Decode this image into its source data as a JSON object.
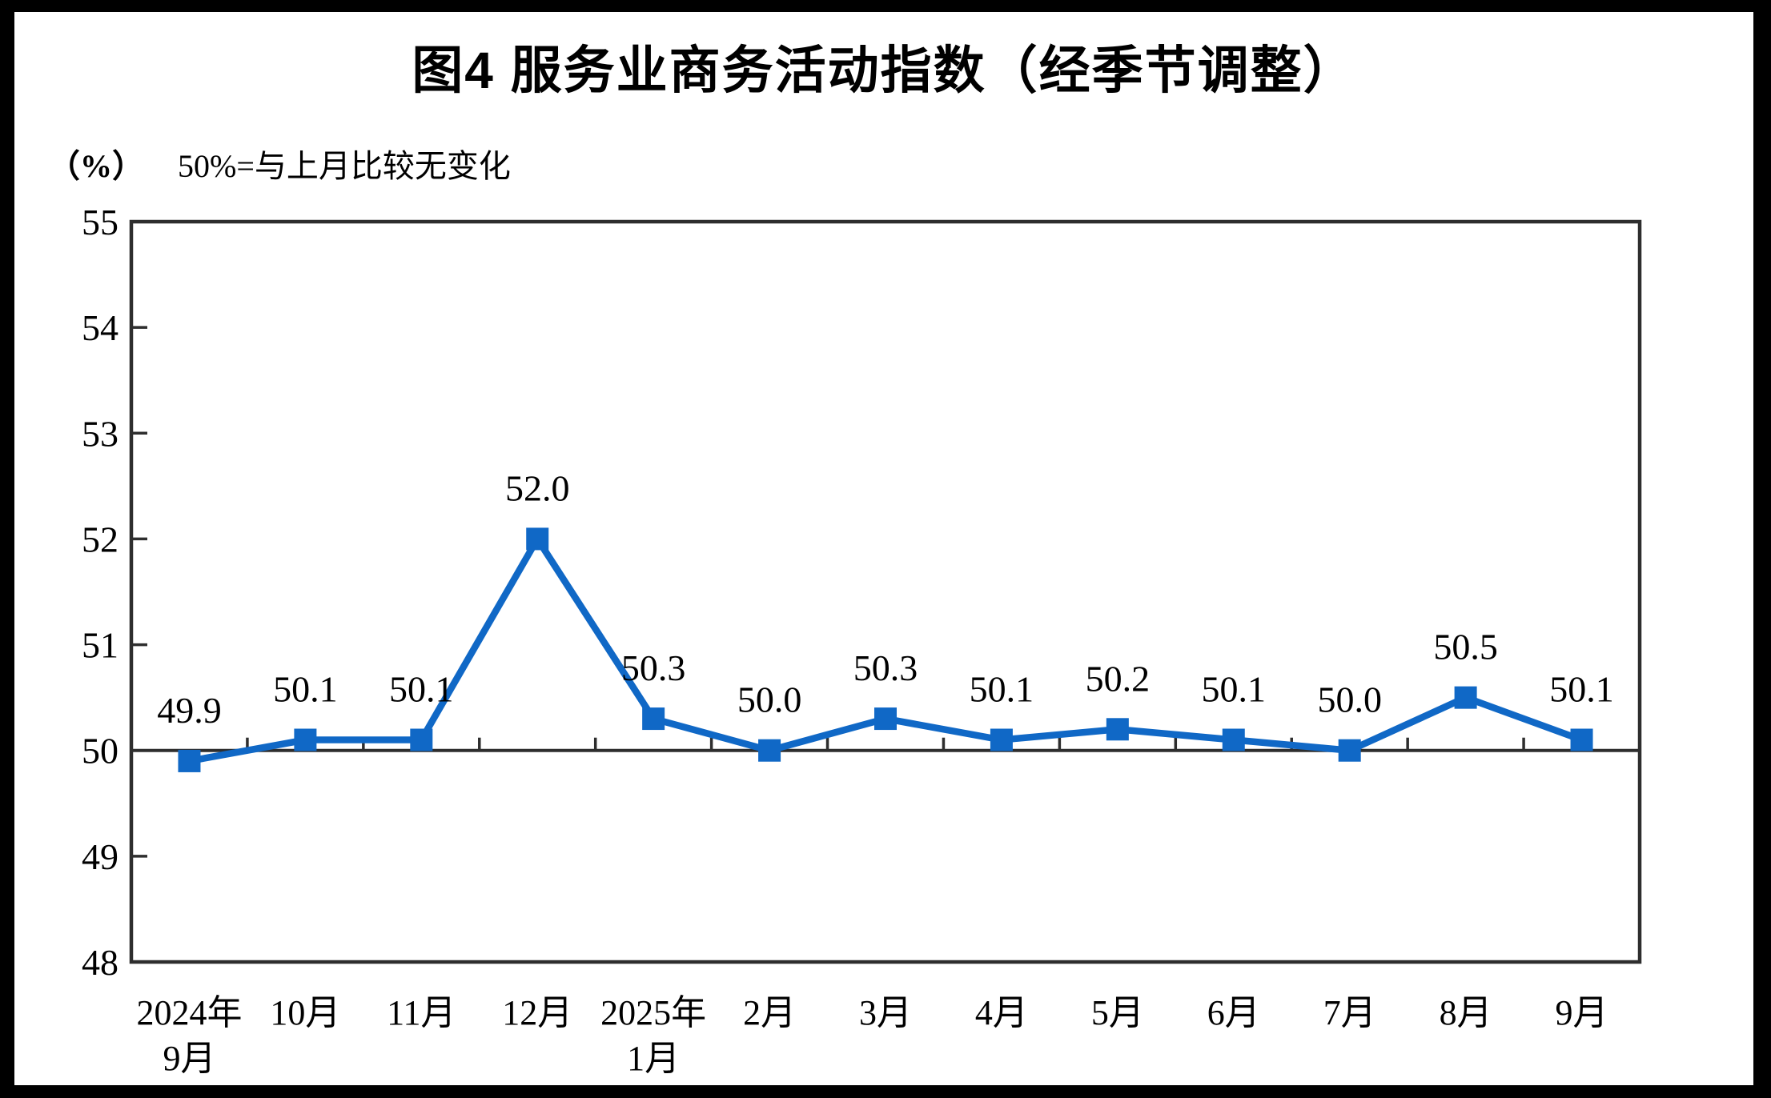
{
  "page": {
    "title": "图4  服务业商务活动指数（经季节调整）",
    "unit_label": "（%）",
    "subtitle": "50%=与上月比较无变化"
  },
  "chart_data": {
    "type": "line",
    "title": "图4 服务业商务活动指数（经季节调整）",
    "unit": "（%）",
    "note": "50%=与上月比较无变化",
    "categories": [
      [
        "2024年",
        "9月"
      ],
      [
        "10月"
      ],
      [
        "11月"
      ],
      [
        "12月"
      ],
      [
        "2025年",
        "1月"
      ],
      [
        "2月"
      ],
      [
        "3月"
      ],
      [
        "4月"
      ],
      [
        "5月"
      ],
      [
        "6月"
      ],
      [
        "7月"
      ],
      [
        "8月"
      ],
      [
        "9月"
      ]
    ],
    "values": [
      49.9,
      50.1,
      50.1,
      52.0,
      50.3,
      50.0,
      50.3,
      50.1,
      50.2,
      50.1,
      50.0,
      50.5,
      50.1
    ],
    "value_labels": [
      "49.9",
      "50.1",
      "50.1",
      "52.0",
      "50.3",
      "50.0",
      "50.3",
      "50.1",
      "50.2",
      "50.1",
      "50.0",
      "50.5",
      "50.1"
    ],
    "y_ticks": [
      48,
      49,
      50,
      51,
      52,
      53,
      54,
      55
    ],
    "ylim": [
      48,
      55
    ],
    "reference_line": 50,
    "grid": false,
    "legend_position": "none",
    "marker": "square",
    "line_color": "#1068c6",
    "axis_color": "#2e2e2e",
    "text_color": "#000000"
  }
}
